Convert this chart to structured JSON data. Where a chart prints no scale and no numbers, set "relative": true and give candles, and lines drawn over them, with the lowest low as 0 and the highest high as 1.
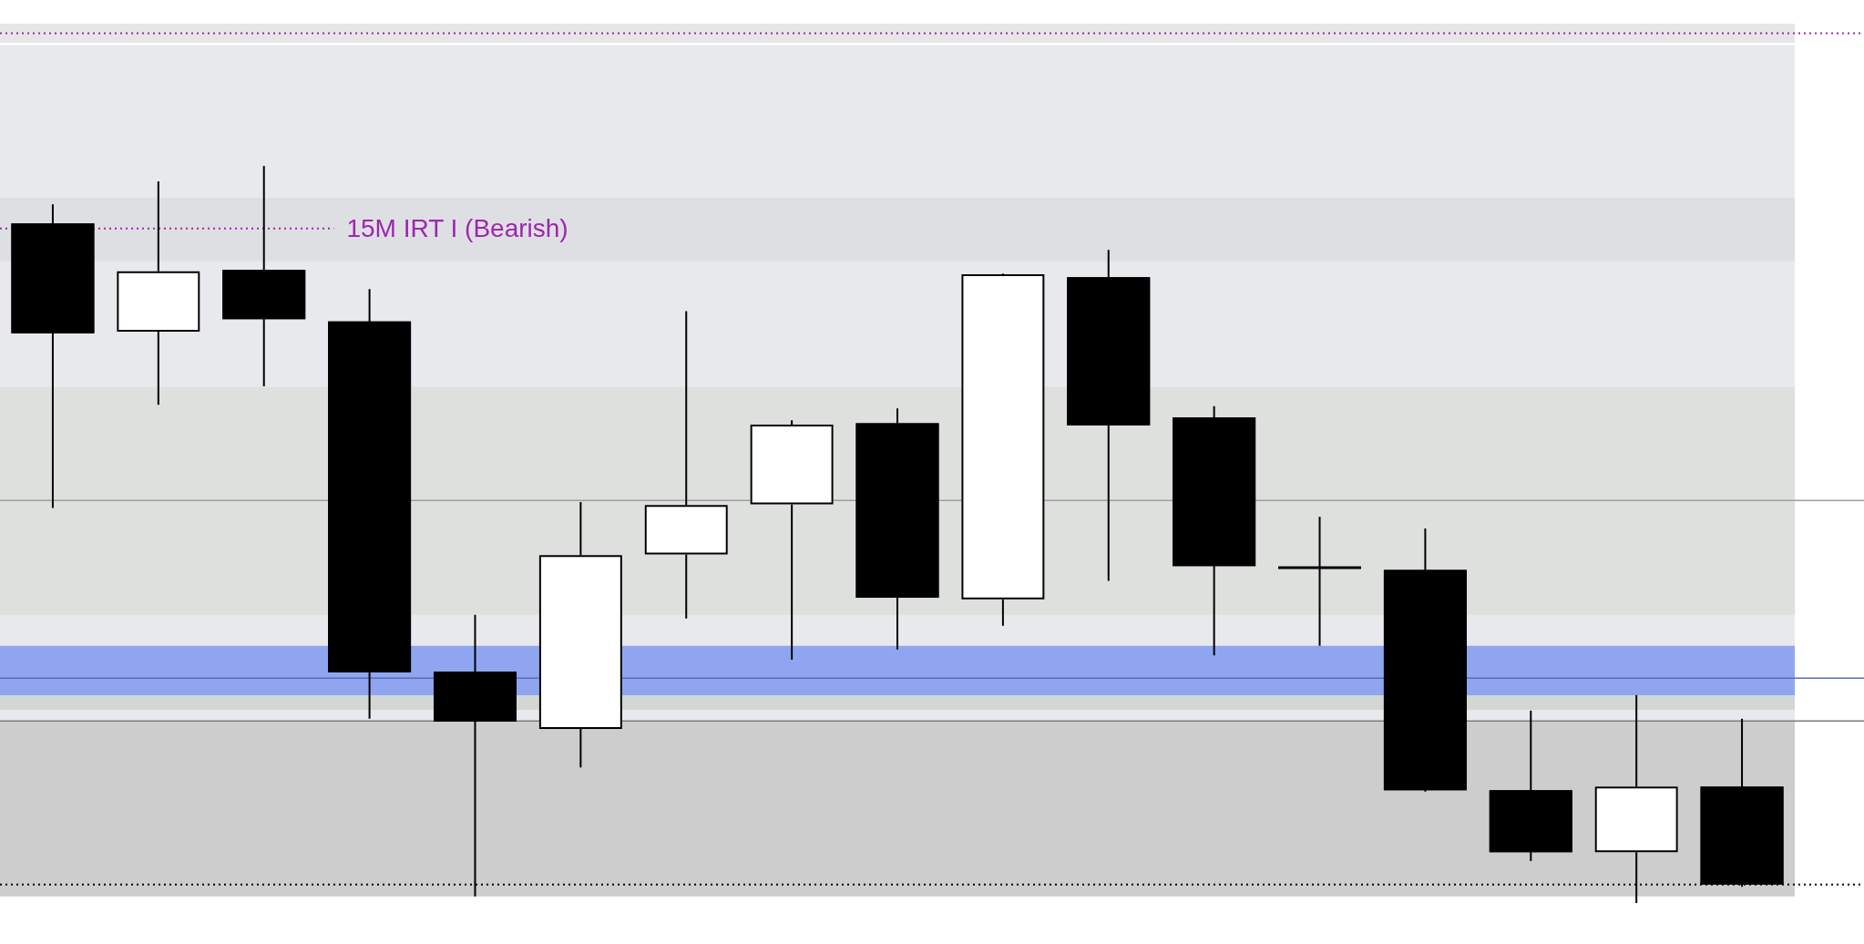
{
  "chart_data": {
    "type": "candlestick",
    "relative": true,
    "categories": [
      null,
      null,
      null,
      null,
      null,
      null,
      null,
      null,
      null,
      null,
      null,
      null,
      null,
      null,
      null,
      null,
      null
    ],
    "ohlc": [
      [
        0.922,
        0.948,
        0.536,
        0.773
      ],
      [
        0.775,
        0.979,
        0.676,
        0.857
      ],
      [
        0.859,
        1.0,
        0.701,
        0.792
      ],
      [
        0.789,
        0.833,
        0.25,
        0.313
      ],
      [
        0.314,
        0.391,
        0.009,
        0.246
      ],
      [
        0.236,
        0.544,
        0.184,
        0.472
      ],
      [
        0.473,
        0.803,
        0.386,
        0.54
      ],
      [
        0.541,
        0.655,
        0.33,
        0.649
      ],
      [
        0.651,
        0.671,
        0.344,
        0.414
      ],
      [
        0.412,
        0.854,
        0.376,
        0.853
      ],
      [
        0.849,
        0.886,
        0.437,
        0.648
      ],
      [
        0.659,
        0.674,
        0.336,
        0.457
      ],
      [
        0.455,
        0.524,
        0.349,
        0.455
      ],
      [
        0.452,
        0.508,
        0.151,
        0.153
      ],
      [
        0.153,
        0.261,
        0.057,
        0.069
      ],
      [
        0.069,
        0.282,
        0.0,
        0.158
      ],
      [
        0.158,
        0.25,
        0.022,
        0.025
      ]
    ],
    "color": "#000000",
    "colors": [
      "#000000",
      "#ffffff",
      "#000000",
      "#000000",
      "#000000",
      "#ffffff",
      "#ffffff",
      "#ffffff",
      "#000000",
      "#ffffff",
      "#000000",
      "#000000",
      "#000000",
      "#000000",
      "#000000",
      "#ffffff",
      "#000000"
    ],
    "bands": [
      {
        "axis": "y",
        "from": 0.247,
        "to": 1.164,
        "color": "#e8e9ed"
      },
      {
        "axis": "y",
        "from": 0.009,
        "to": 0.247,
        "color": "#cdcdcd"
      },
      {
        "axis": "y",
        "from": 1.167,
        "to": 1.193,
        "color": "#e6e6e6"
      },
      {
        "axis": "y",
        "from": 0.871,
        "to": 0.957,
        "color": "#dedfe2"
      },
      {
        "axis": "y",
        "from": 0.391,
        "to": 0.7,
        "color": "#dde0dd"
      },
      {
        "axis": "y",
        "from": 0.282,
        "to": 0.349,
        "color": "#8fa5ef"
      },
      {
        "axis": "y",
        "from": 0.262,
        "to": 0.282,
        "color": "#d3d6d3"
      }
    ],
    "ref_lines": [
      {
        "axis": "y",
        "value": 1.18,
        "color": "#9c27b0",
        "line_style": "dotted"
      },
      {
        "axis": "y",
        "value": 0.915,
        "label": "15M IRT I (Bearish)",
        "color": "#9c27b0",
        "line_style": "dotted"
      },
      {
        "axis": "y",
        "value": 0.546,
        "color": "#9e9e9e",
        "line_style": "solid"
      },
      {
        "axis": "y",
        "value": 0.305,
        "color": "#5b6bb5",
        "line_style": "solid"
      },
      {
        "axis": "y",
        "value": 0.247,
        "color": "#787b86",
        "line_style": "solid"
      },
      {
        "axis": "y",
        "value": 0.025,
        "color": "#000000",
        "line_style": "dotted"
      }
    ]
  }
}
